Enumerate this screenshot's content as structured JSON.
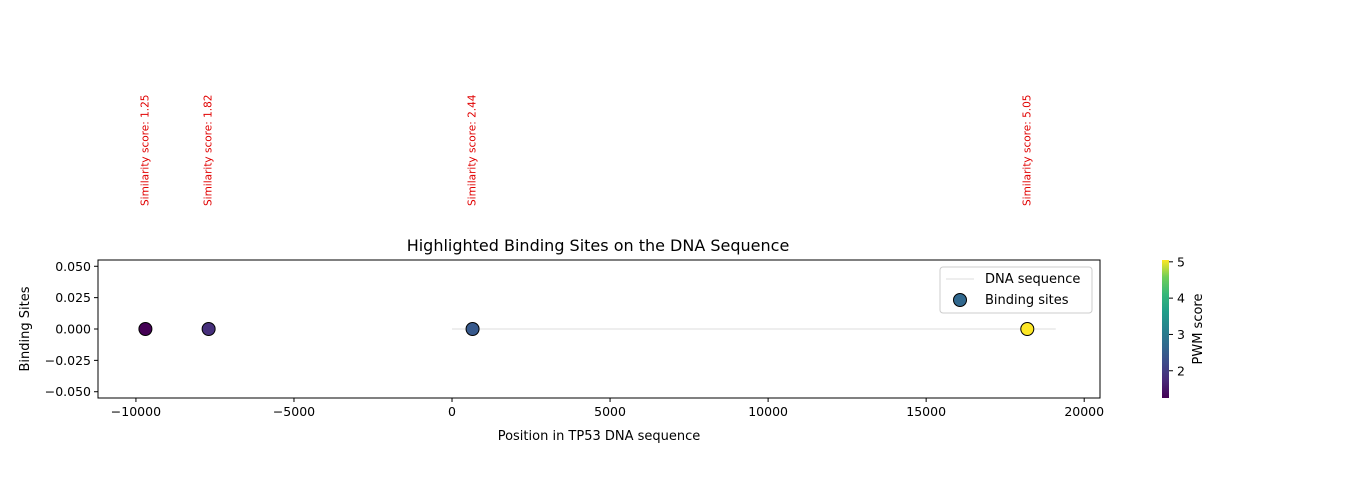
{
  "chart_data": {
    "type": "scatter",
    "title": "Highlighted Binding Sites on the DNA Sequence",
    "xlabel": "Position in TP53 DNA sequence",
    "ylabel": "Binding Sites",
    "xlim": [
      -11200,
      20500
    ],
    "ylim": [
      -0.055,
      0.055
    ],
    "xticks": [
      -10000,
      -5000,
      0,
      5000,
      10000,
      15000,
      20000
    ],
    "xtick_labels": [
      "−10000",
      "−5000",
      "0",
      "5000",
      "10000",
      "15000",
      "20000"
    ],
    "yticks": [
      0.05,
      0.025,
      0.0,
      -0.025,
      -0.05
    ],
    "ytick_labels": [
      "0.050",
      "0.025",
      "0.000",
      "−0.025",
      "−0.050"
    ],
    "grid": false,
    "legend_position": "top-right",
    "series": [
      {
        "name": "DNA sequence",
        "kind": "line",
        "color": "#dddddd",
        "x": [
          0,
          19100
        ],
        "y": [
          0,
          0
        ]
      },
      {
        "name": "Binding sites",
        "kind": "scatter",
        "colormap": "viridis",
        "x": [
          -9700,
          -7700,
          650,
          18200
        ],
        "y": [
          0,
          0,
          0,
          0
        ],
        "pwm_scores": [
          1.25,
          1.82,
          2.44,
          5.05
        ]
      }
    ],
    "annotations": [
      {
        "x": -9700,
        "text": "Similarity score: 1.25"
      },
      {
        "x": -7700,
        "text": "Similarity score: 1.82"
      },
      {
        "x": 650,
        "text": "Similarity score: 2.44"
      },
      {
        "x": 18200,
        "text": "Similarity score: 5.05"
      }
    ],
    "colorbar": {
      "label": "PWM score",
      "range": [
        1.25,
        5.05
      ],
      "ticks": [
        2,
        3,
        4,
        5
      ],
      "tick_labels": [
        "2",
        "3",
        "4",
        "5"
      ]
    }
  }
}
